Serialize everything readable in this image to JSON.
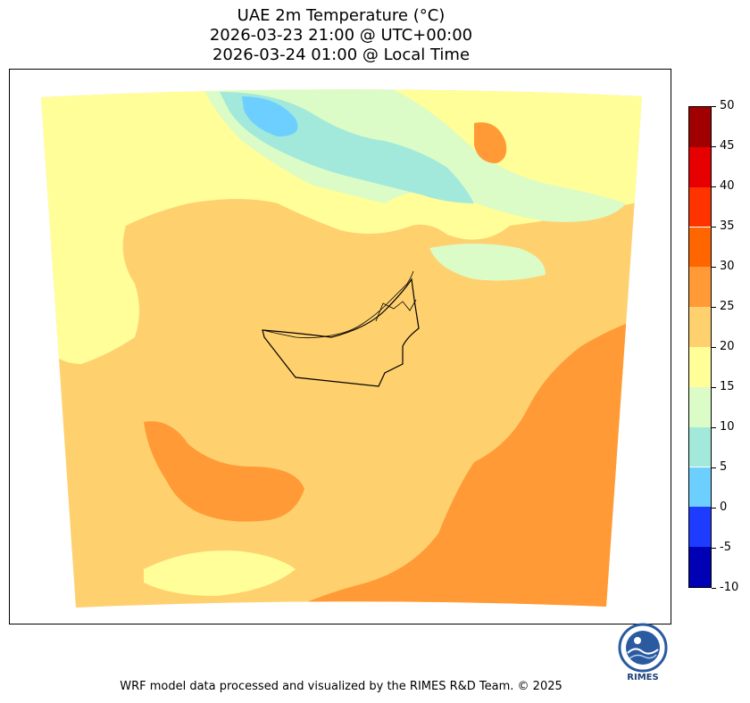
{
  "title": {
    "line1": "UAE 2m Temperature (°C)",
    "line2": "2026-03-23 21:00 @ UTC+00:00",
    "line3": "2026-03-24 01:00 @ Local Time"
  },
  "colorbar": {
    "levels": [
      -10,
      -5,
      0,
      5,
      10,
      15,
      20,
      25,
      30,
      35,
      40,
      45,
      50
    ],
    "tick_labels": [
      "-10",
      "-5",
      "0",
      "5",
      "10",
      "15",
      "20",
      "25",
      "30",
      "35",
      "40",
      "45",
      "50"
    ],
    "colors": [
      "#0000b4",
      "#1e3cff",
      "#6ccfff",
      "#a2e9dc",
      "#dbfcc6",
      "#fffe99",
      "#ffd06e",
      "#ff9a36",
      "#ff6600",
      "#ff3300",
      "#e60000",
      "#a00000"
    ]
  },
  "palette": {
    "cool": "#a2e9dc",
    "cold": "#6ccfff",
    "mild": "#dbfcc6",
    "warm": "#fffe99",
    "hot": "#ffd06e",
    "hotter": "#ff9a36",
    "border": "#000000"
  },
  "logo": {
    "text": "RIMES",
    "icon": "rimes-logo-icon"
  },
  "footer": "WRF model data processed and visualized by the RIMES R&D Team. © 2025"
}
